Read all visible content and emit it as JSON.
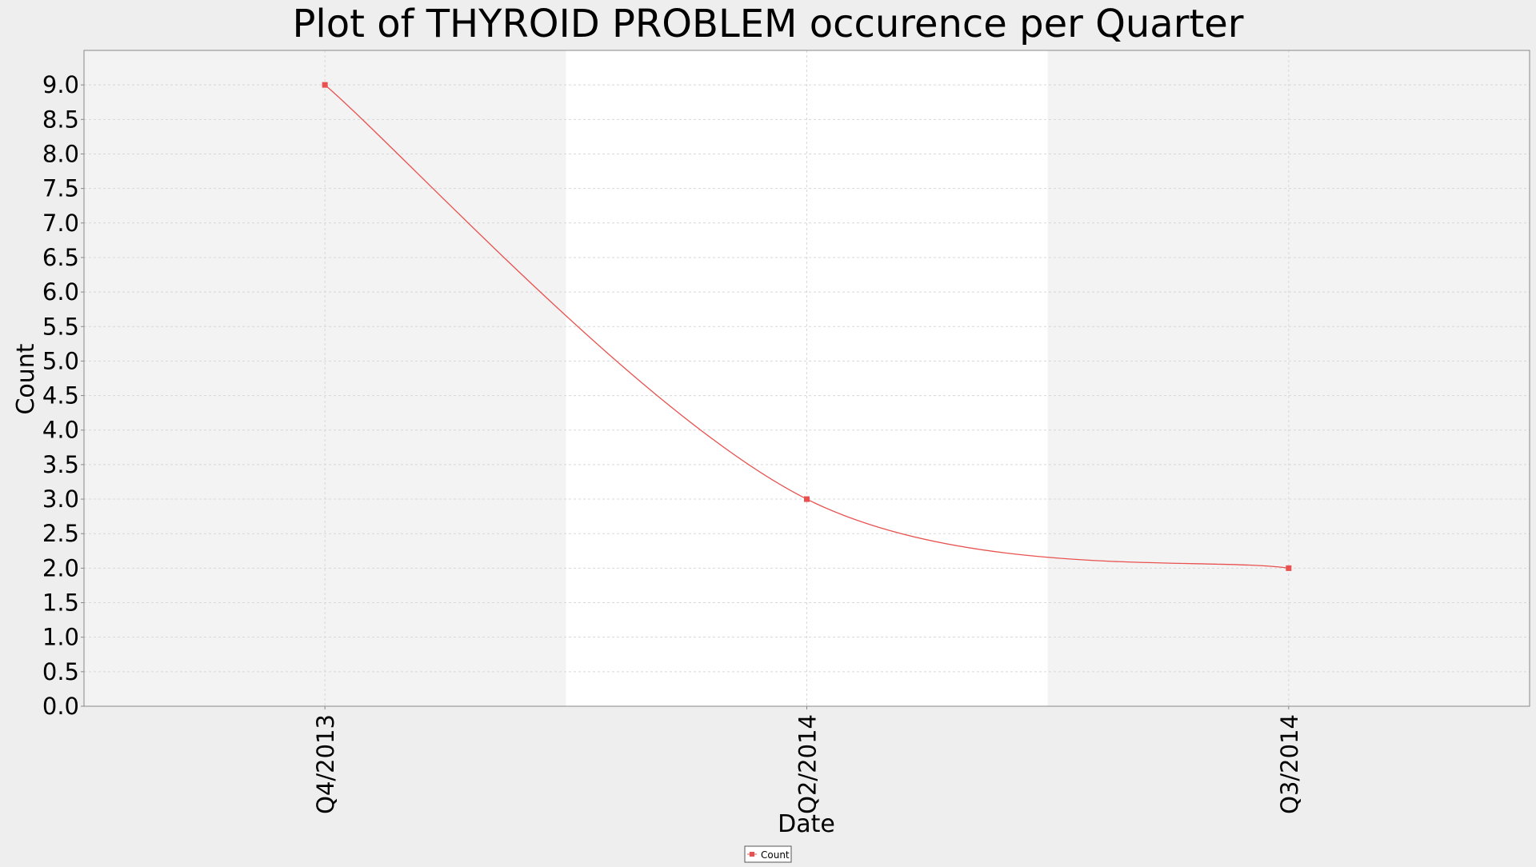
{
  "chart_data": {
    "type": "line",
    "title": "Plot of THYROID PROBLEM occurence per Quarter",
    "xlabel": "Date",
    "ylabel": "Count",
    "categories": [
      "Q4/2013",
      "Q2/2014",
      "Q3/2014"
    ],
    "series": [
      {
        "name": "Count",
        "values": [
          9.0,
          3.0,
          2.0
        ],
        "color": "#e8514f",
        "smoothed": true
      }
    ],
    "ylim": [
      0.0,
      9.5
    ],
    "yticks": [
      "0.0",
      "0.5",
      "1.0",
      "1.5",
      "2.0",
      "2.5",
      "3.0",
      "3.5",
      "4.0",
      "4.5",
      "5.0",
      "5.5",
      "6.0",
      "6.5",
      "7.0",
      "7.5",
      "8.0",
      "8.5",
      "9.0"
    ],
    "grid": true,
    "legend": {
      "position": "bottom-center",
      "entries": [
        "Count"
      ]
    },
    "background": {
      "page": "#eeeeee",
      "band_alternate": "#f3f3f3",
      "band_white": "#ffffff",
      "grid": "#d8d8d8",
      "axis": "#888888"
    }
  }
}
